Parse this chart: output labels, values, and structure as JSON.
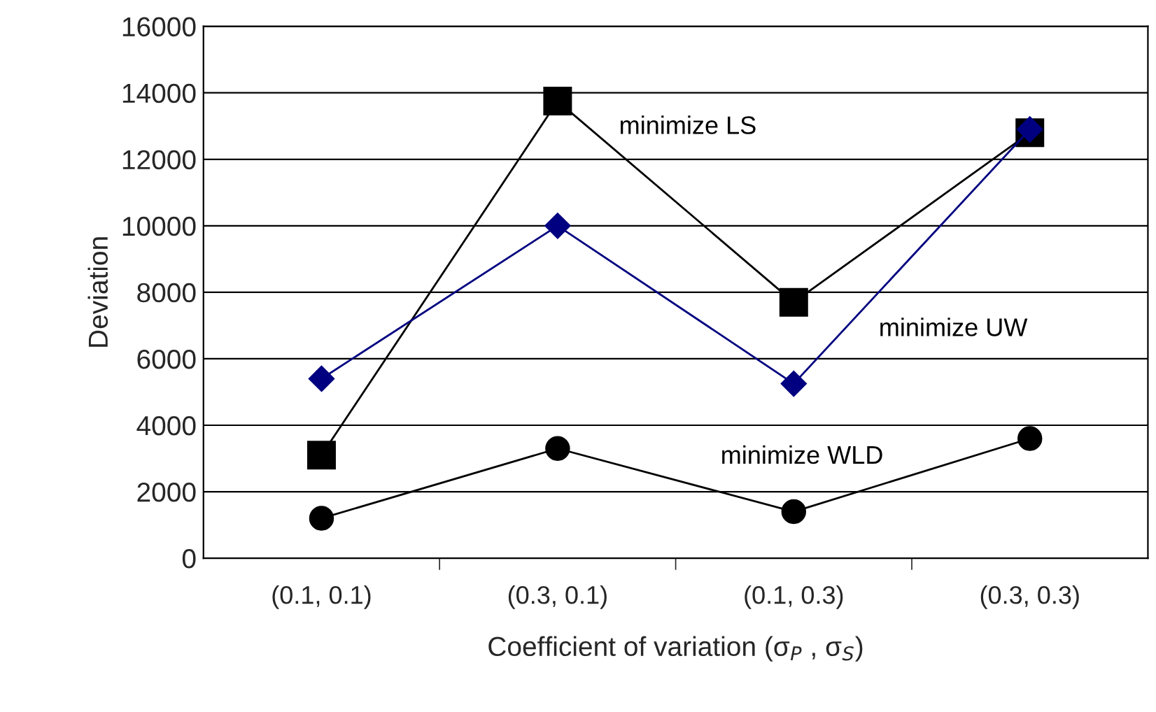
{
  "chart_data": {
    "type": "line",
    "xlabel": "Coefficient of variation (σ$_{P}$ , σ$_{S}$)",
    "ylabel": "Deviation",
    "categories": [
      "(0.1, 0.1)",
      "(0.3, 0.1)",
      "(0.1, 0.3)",
      "(0.3, 0.3)"
    ],
    "series": [
      {
        "name": "minimize LS",
        "color": "#000000",
        "marker": "square",
        "values": [
          3100,
          13750,
          7700,
          12800
        ]
      },
      {
        "name": "minimize UW",
        "color": "#000080",
        "marker": "diamond",
        "values": [
          5400,
          10000,
          5250,
          12900
        ]
      },
      {
        "name": "minimize WLD",
        "color": "#000000",
        "marker": "circle",
        "values": [
          1200,
          3300,
          1400,
          3600
        ]
      }
    ],
    "ylim": [
      0,
      16000
    ],
    "yticks": [
      0,
      2000,
      4000,
      6000,
      8000,
      10000,
      12000,
      14000,
      16000
    ],
    "grid": "y",
    "legend": false,
    "line_style": "solid"
  }
}
